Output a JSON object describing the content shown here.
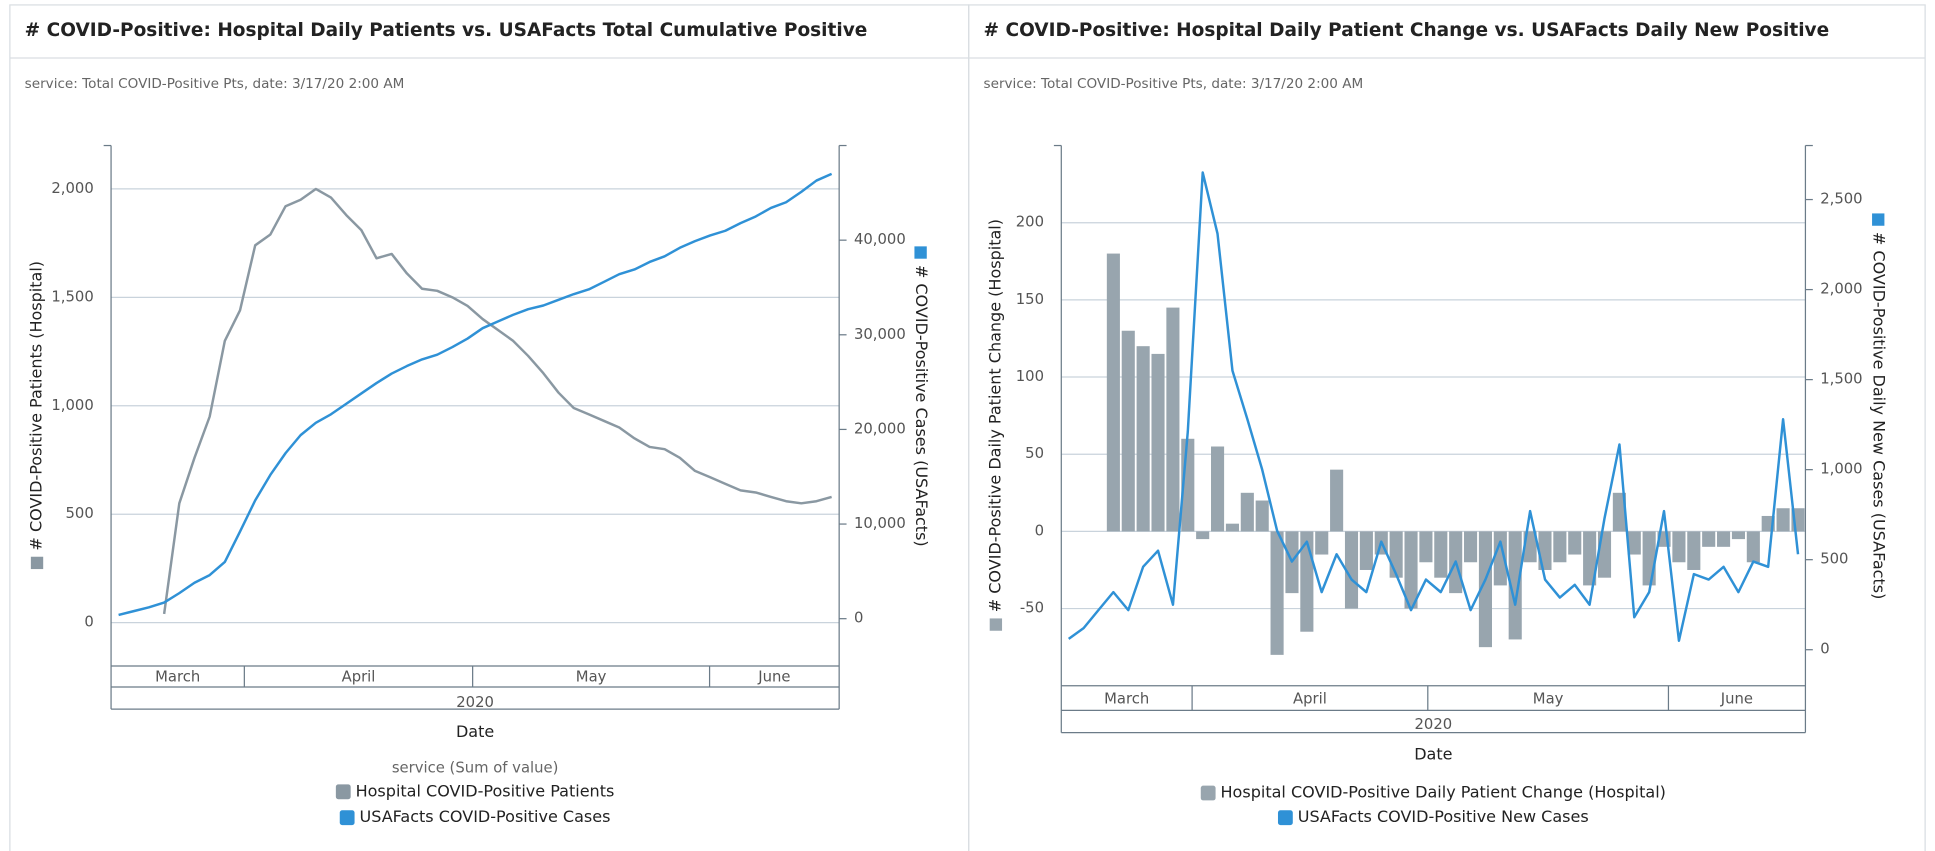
{
  "chart_data": [
    {
      "type": "line",
      "title": "# COVID-Positive: Hospital Daily Patients vs. USAFacts Total Cumulative Positive",
      "subtitle": "service: Total COVID-Positive Pts, date: 3/17/20 2:00 AM",
      "xlabel": "Date",
      "ylabel": "# COVID-Positive Patients (Hospital)",
      "y2label": "# COVID-Positive Cases (USAFacts)",
      "months": [
        "March",
        "April",
        "May",
        "June"
      ],
      "year": "2020",
      "legend_title": "service (Sum of value)",
      "grid": true,
      "ylim": [
        -200,
        2200
      ],
      "yticks": [
        0,
        500,
        {
          "value": 1000,
          "label": "1,000"
        },
        {
          "value": 1500,
          "label": "1,500"
        },
        {
          "value": 2000,
          "label": "2,000"
        }
      ],
      "y2lim": [
        -5000,
        50000
      ],
      "y2ticks": [
        0,
        {
          "value": 10000,
          "label": "10,000"
        },
        {
          "value": 20000,
          "label": "20,000"
        },
        {
          "value": 30000,
          "label": "30,000"
        },
        {
          "value": 40000,
          "label": "40,000"
        }
      ],
      "series": [
        {
          "name": "Hospital COVID-Positive Patients",
          "color": "#8a98a2",
          "axis": "y",
          "values": [
            null,
            null,
            null,
            40,
            550,
            760,
            950,
            1300,
            1440,
            1740,
            1790,
            1920,
            1950,
            2000,
            1960,
            1880,
            1810,
            1680,
            1700,
            1610,
            1540,
            1530,
            1500,
            1460,
            1400,
            1350,
            1300,
            1230,
            1150,
            1060,
            990,
            960,
            930,
            900,
            850,
            810,
            800,
            760,
            700,
            670,
            640,
            610,
            600,
            580,
            560,
            550,
            560,
            580
          ]
        },
        {
          "name": "USAFacts COVID-Positive Cases",
          "color": "#2f91d6",
          "axis": "y2",
          "values": [
            400,
            800,
            1200,
            1700,
            2700,
            3800,
            4600,
            6000,
            9200,
            12500,
            15200,
            17500,
            19400,
            20700,
            21600,
            22700,
            23800,
            24900,
            25900,
            26700,
            27400,
            27900,
            28700,
            29600,
            30700,
            31400,
            32100,
            32700,
            33100,
            33700,
            34300,
            34800,
            35600,
            36400,
            36900,
            37700,
            38300,
            39200,
            39900,
            40500,
            41000,
            41800,
            42500,
            43400,
            44000,
            45100,
            46300,
            47000
          ]
        }
      ]
    },
    {
      "type": "combo",
      "title": "# COVID-Positive: Hospital Daily Patient Change vs. USAFacts Daily New Positive",
      "subtitle": "service: Total COVID-Positive Pts, date: 3/17/20 2:00 AM",
      "xlabel": "Date",
      "ylabel": "# COVID-Positive Daily Patient Change (Hospital)",
      "y2label": "# COVID-Positive Daily New Cases (USAFacts)",
      "months": [
        "March",
        "April",
        "May",
        "June"
      ],
      "year": "2020",
      "grid": true,
      "ylim": [
        -100,
        250
      ],
      "yticks": [
        -50,
        0,
        50,
        100,
        150,
        200
      ],
      "y2lim": [
        -200,
        2800
      ],
      "y2ticks": [
        0,
        500,
        {
          "value": 1000,
          "label": "1,000"
        },
        {
          "value": 1500,
          "label": "1,500"
        },
        {
          "value": 2000,
          "label": "2,000"
        },
        {
          "value": 2500,
          "label": "2,500"
        }
      ],
      "series": [
        {
          "name": "Hospital COVID-Positive Daily Patient Change (Hospital)",
          "color": "#98a5ae",
          "axis": "y",
          "type": "bar",
          "values": [
            null,
            null,
            null,
            180,
            130,
            120,
            115,
            145,
            60,
            -5,
            55,
            5,
            25,
            20,
            -80,
            -40,
            -65,
            -15,
            40,
            -50,
            -25,
            -15,
            -30,
            -50,
            -20,
            -30,
            -40,
            -20,
            -75,
            -35,
            -70,
            -20,
            -25,
            -20,
            -15,
            -35,
            -30,
            25,
            -15,
            -35,
            -10,
            -20,
            -25,
            -10,
            -10,
            -5,
            -20,
            10,
            15,
            15
          ]
        },
        {
          "name": "USAFacts COVID-Positive New Cases",
          "color": "#2f91d6",
          "axis": "y2",
          "type": "line",
          "values": [
            60,
            120,
            220,
            320,
            220,
            460,
            550,
            250,
            1210,
            2650,
            2310,
            1550,
            1280,
            1000,
            660,
            490,
            600,
            320,
            530,
            390,
            320,
            600,
            420,
            220,
            390,
            320,
            490,
            220,
            390,
            600,
            250,
            770,
            390,
            290,
            360,
            250,
            730,
            1140,
            180,
            320,
            770,
            50,
            420,
            390,
            460,
            320,
            490,
            460,
            1280,
            530
          ]
        }
      ]
    }
  ]
}
